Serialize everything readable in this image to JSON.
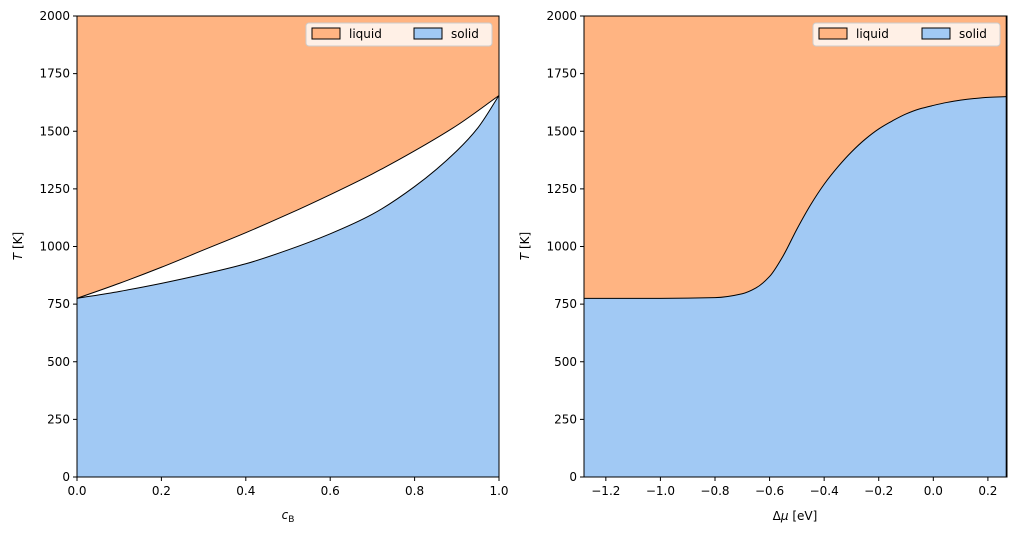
{
  "colors": {
    "liquid": "#ffb482",
    "solid": "#a1c9f4",
    "line": "#000000",
    "background": "#ffffff"
  },
  "chart_data": [
    {
      "type": "area",
      "xlabel_parts": [
        "c",
        "B"
      ],
      "ylabel_parts": [
        "T",
        " [K]"
      ],
      "xlim": [
        0.0,
        1.0
      ],
      "ylim": [
        0,
        2000
      ],
      "xticks": [
        0.0,
        0.2,
        0.4,
        0.6,
        0.8,
        1.0
      ],
      "xtick_labels": [
        "0.0",
        "0.2",
        "0.4",
        "0.6",
        "0.8",
        "1.0"
      ],
      "yticks": [
        0,
        250,
        500,
        750,
        1000,
        1250,
        1500,
        1750,
        2000
      ],
      "ytick_labels": [
        "0",
        "250",
        "500",
        "750",
        "1000",
        "1250",
        "1500",
        "1750",
        "2000"
      ],
      "legend": {
        "position": "top-right",
        "entries": [
          "liquid",
          "solid"
        ]
      },
      "series": [
        {
          "name": "liquid",
          "x": [
            0.0,
            0.1,
            0.2,
            0.3,
            0.4,
            0.5,
            0.6,
            0.7,
            0.8,
            0.9,
            1.0
          ],
          "y": [
            775,
            840,
            910,
            985,
            1060,
            1140,
            1225,
            1315,
            1415,
            1525,
            1655
          ]
        },
        {
          "name": "solid",
          "x": [
            0.0,
            0.1,
            0.2,
            0.3,
            0.4,
            0.5,
            0.6,
            0.7,
            0.8,
            0.9,
            0.95,
            1.0
          ],
          "y": [
            775,
            805,
            840,
            880,
            925,
            985,
            1055,
            1140,
            1260,
            1415,
            1515,
            1655
          ]
        }
      ]
    },
    {
      "type": "area",
      "xlabel_parts": [
        "Δ",
        "μ",
        " [eV]"
      ],
      "ylabel_parts": [
        "T",
        " [K]"
      ],
      "xlim": [
        -1.28,
        0.27
      ],
      "ylim": [
        0,
        2000
      ],
      "xticks": [
        -1.2,
        -1.0,
        -0.8,
        -0.6,
        -0.4,
        -0.2,
        0.0,
        0.2
      ],
      "xtick_labels": [
        "−1.2",
        "−1.0",
        "−0.8",
        "−0.6",
        "−0.4",
        "−0.2",
        "0.0",
        "0.2"
      ],
      "yticks": [
        0,
        250,
        500,
        750,
        1000,
        1250,
        1500,
        1750,
        2000
      ],
      "ytick_labels": [
        "0",
        "250",
        "500",
        "750",
        "1000",
        "1250",
        "1500",
        "1750",
        "2000"
      ],
      "legend": {
        "position": "top-right",
        "entries": [
          "liquid",
          "solid"
        ]
      },
      "boundary": {
        "x": [
          -1.28,
          -1.0,
          -0.8,
          -0.7,
          -0.65,
          -0.6,
          -0.55,
          -0.5,
          -0.45,
          -0.4,
          -0.35,
          -0.3,
          -0.25,
          -0.2,
          -0.15,
          -0.1,
          -0.05,
          0.0,
          0.05,
          0.1,
          0.15,
          0.2,
          0.268
        ],
        "y": [
          775,
          775,
          778,
          795,
          820,
          870,
          960,
          1075,
          1180,
          1270,
          1345,
          1410,
          1465,
          1510,
          1545,
          1575,
          1597,
          1612,
          1625,
          1635,
          1642,
          1647,
          1650
        ]
      },
      "liquid_edge_x": 0.268
    }
  ]
}
